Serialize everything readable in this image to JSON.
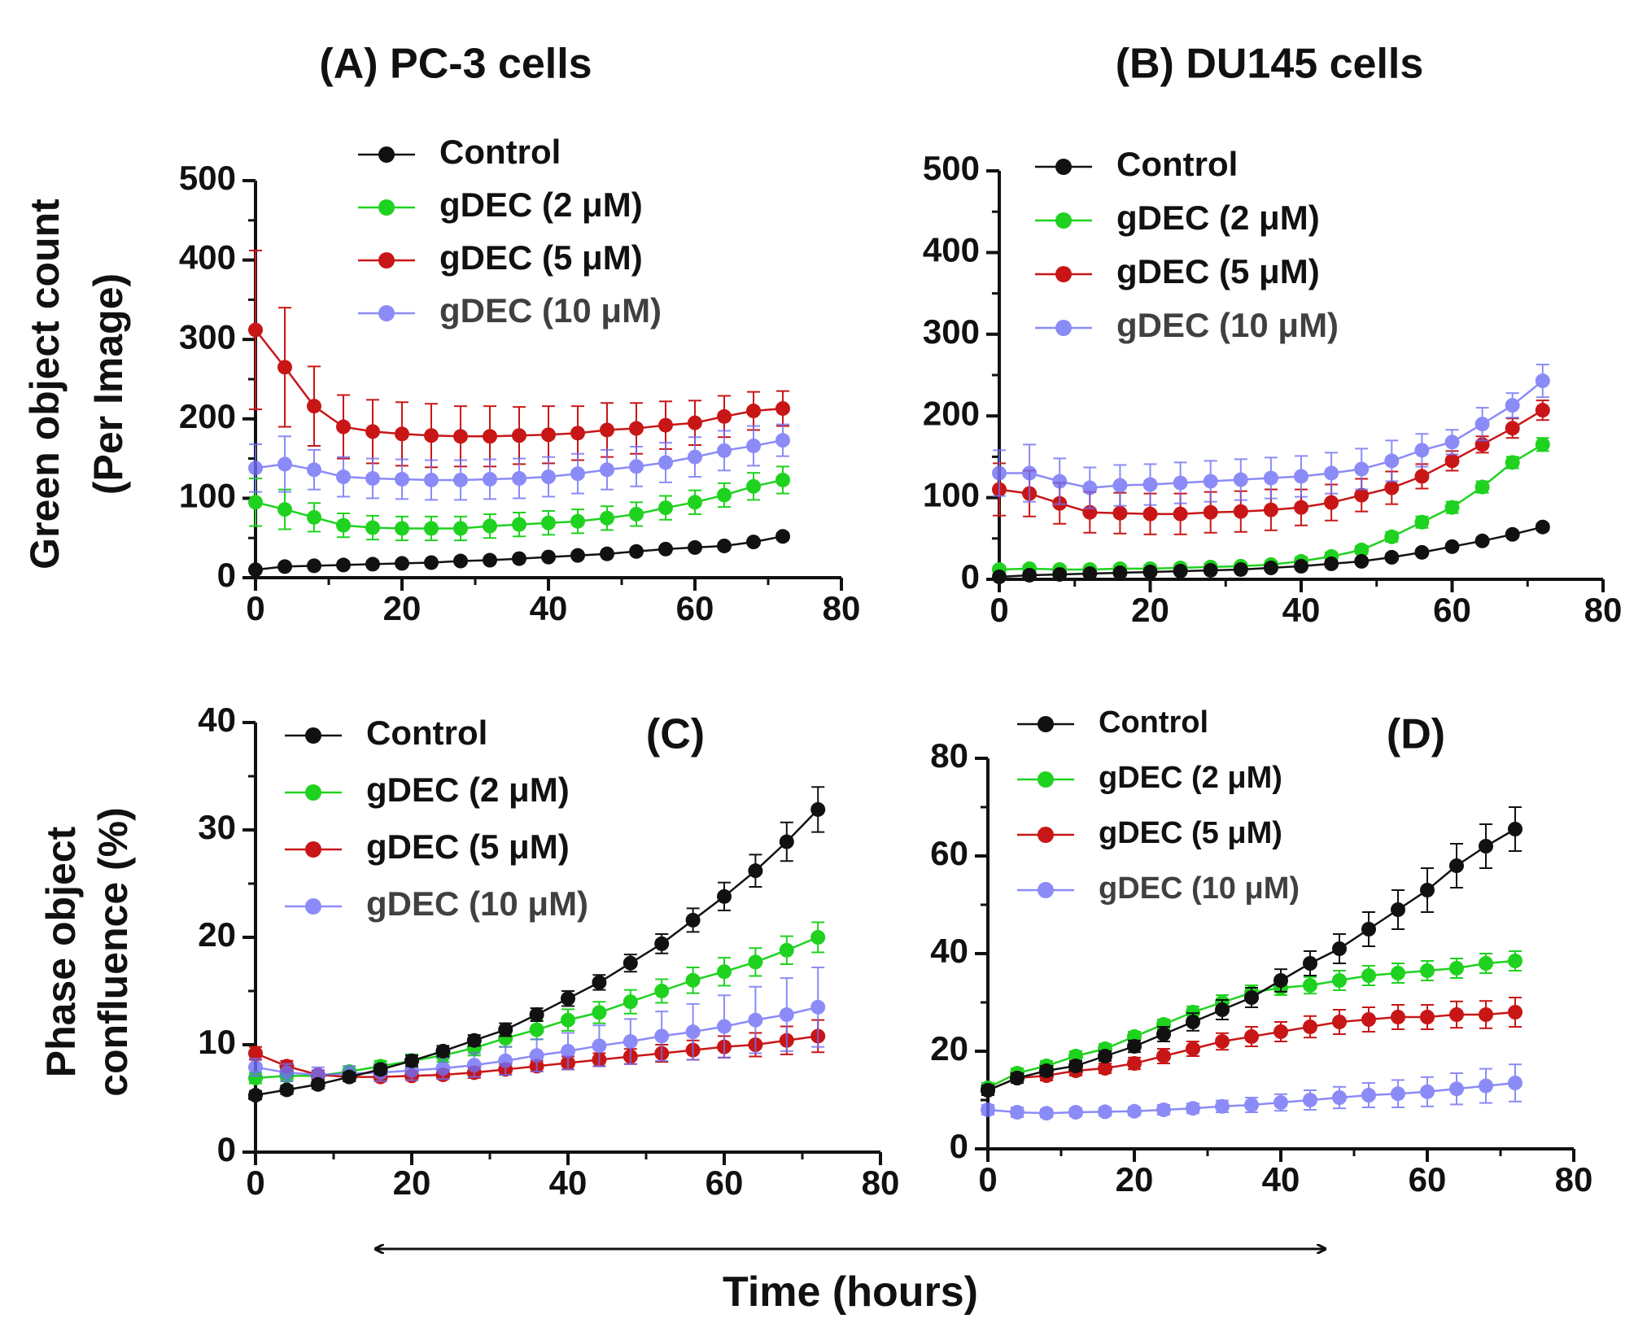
{
  "figure": {
    "bottom_label": "Time (hours)",
    "ylabel_top_line1": "Green object count",
    "ylabel_top_line2": "(Per Image)",
    "ylabel_bottom_line1": "Phase object",
    "ylabel_bottom_line2": "confluence (%)",
    "colors": {
      "control": "#111111",
      "gdec2": "#1fd21f",
      "gdec5": "#c81616",
      "gdec10": "#6f6ff7"
    }
  },
  "chart_data": [
    {
      "id": "A",
      "type": "line",
      "title": "(A) PC-3 cells",
      "xlabel": "Time (hours)",
      "ylabel": "Green object count (Per Image)",
      "xlim": [
        0,
        80
      ],
      "ylim": [
        0,
        500
      ],
      "xticks": [
        0,
        20,
        40,
        60,
        80
      ],
      "yticks": [
        0,
        100,
        200,
        300,
        400,
        500
      ],
      "legend": "top-center",
      "x": [
        0,
        4,
        8,
        12,
        16,
        20,
        24,
        28,
        32,
        36,
        40,
        44,
        48,
        52,
        56,
        60,
        64,
        68,
        72
      ],
      "series": [
        {
          "name": "Control",
          "color": "#111111",
          "opacity": 1,
          "values": [
            10,
            14,
            15,
            16,
            17,
            18,
            19,
            21,
            22,
            24,
            26,
            28,
            30,
            33,
            36,
            38,
            40,
            45,
            52
          ],
          "errors": [
            2,
            2,
            2,
            2,
            2,
            2,
            2,
            2,
            2,
            2,
            2,
            2,
            2,
            2,
            2,
            2,
            2,
            3,
            4
          ]
        },
        {
          "name": "gDEC (2 μM)",
          "color": "#1fd21f",
          "opacity": 1,
          "values": [
            95,
            86,
            76,
            66,
            63,
            62,
            62,
            62,
            65,
            67,
            69,
            71,
            75,
            80,
            88,
            95,
            104,
            115,
            123
          ],
          "errors": [
            30,
            25,
            18,
            15,
            15,
            15,
            15,
            15,
            15,
            15,
            15,
            15,
            15,
            15,
            15,
            15,
            15,
            17,
            17
          ]
        },
        {
          "name": "gDEC (5 μM)",
          "color": "#c81616",
          "opacity": 1,
          "values": [
            312,
            265,
            216,
            190,
            184,
            181,
            179,
            178,
            178,
            179,
            180,
            182,
            186,
            188,
            192,
            195,
            203,
            210,
            213
          ],
          "errors": [
            100,
            75,
            50,
            40,
            40,
            40,
            40,
            38,
            38,
            36,
            36,
            34,
            34,
            32,
            30,
            28,
            26,
            24,
            22
          ]
        },
        {
          "name": "gDEC (10 μM)",
          "color": "#6f6ff7",
          "opacity": 0.8,
          "values": [
            138,
            143,
            136,
            127,
            125,
            124,
            123,
            123,
            124,
            125,
            127,
            131,
            136,
            140,
            145,
            152,
            160,
            166,
            173
          ],
          "errors": [
            30,
            35,
            25,
            25,
            25,
            25,
            25,
            25,
            25,
            25,
            25,
            25,
            25,
            25,
            25,
            25,
            25,
            25,
            20
          ]
        }
      ]
    },
    {
      "id": "B",
      "type": "line",
      "title": "(B) DU145 cells",
      "xlabel": "Time (hours)",
      "ylabel": "Green object count (Per Image)",
      "xlim": [
        0,
        80
      ],
      "ylim": [
        0,
        500
      ],
      "xticks": [
        0,
        20,
        40,
        60,
        80
      ],
      "yticks": [
        0,
        100,
        200,
        300,
        400,
        500
      ],
      "legend": "top-left",
      "x": [
        0,
        4,
        8,
        12,
        16,
        20,
        24,
        28,
        32,
        36,
        40,
        44,
        48,
        52,
        56,
        60,
        64,
        68,
        72
      ],
      "series": [
        {
          "name": "Control",
          "color": "#111111",
          "opacity": 1,
          "values": [
            3,
            5,
            6,
            7,
            8,
            9,
            10,
            11,
            12,
            14,
            16,
            19,
            22,
            27,
            33,
            40,
            47,
            55,
            64
          ],
          "errors": [
            2,
            2,
            2,
            2,
            2,
            2,
            2,
            2,
            2,
            2,
            2,
            2,
            2,
            2,
            3,
            3,
            3,
            3,
            4
          ]
        },
        {
          "name": "gDEC (2 μM)",
          "color": "#1fd21f",
          "opacity": 1,
          "values": [
            12,
            13,
            12,
            12,
            13,
            13,
            14,
            15,
            16,
            18,
            22,
            28,
            36,
            52,
            70,
            88,
            113,
            143,
            165
          ],
          "errors": [
            4,
            4,
            4,
            4,
            4,
            4,
            4,
            4,
            4,
            4,
            5,
            5,
            5,
            6,
            7,
            7,
            7,
            7,
            8
          ]
        },
        {
          "name": "gDEC (5 μM)",
          "color": "#c81616",
          "opacity": 1,
          "values": [
            110,
            105,
            93,
            82,
            81,
            80,
            80,
            82,
            83,
            85,
            88,
            94,
            103,
            112,
            126,
            145,
            165,
            185,
            207
          ],
          "errors": [
            32,
            28,
            25,
            25,
            25,
            25,
            25,
            25,
            25,
            25,
            22,
            22,
            20,
            20,
            15,
            12,
            10,
            12,
            12
          ]
        },
        {
          "name": "gDEC (10 μM)",
          "color": "#6f6ff7",
          "opacity": 0.8,
          "values": [
            130,
            130,
            120,
            112,
            115,
            116,
            118,
            120,
            122,
            124,
            126,
            130,
            135,
            145,
            158,
            168,
            190,
            213,
            243
          ],
          "errors": [
            28,
            35,
            28,
            25,
            25,
            25,
            25,
            25,
            25,
            25,
            25,
            25,
            25,
            25,
            20,
            15,
            20,
            15,
            20
          ]
        }
      ]
    },
    {
      "id": "C",
      "type": "line",
      "title": "(C)",
      "xlabel": "Time (hours)",
      "ylabel": "Phase object confluence (%)",
      "xlim": [
        0,
        80
      ],
      "ylim": [
        0,
        40
      ],
      "xticks": [
        0,
        20,
        40,
        60,
        80
      ],
      "yticks": [
        0,
        10,
        20,
        30,
        40
      ],
      "legend": "top-left",
      "x": [
        0,
        4,
        8,
        12,
        16,
        20,
        24,
        28,
        32,
        36,
        40,
        44,
        48,
        52,
        56,
        60,
        64,
        68,
        72
      ],
      "series": [
        {
          "name": "Control",
          "color": "#111111",
          "opacity": 1,
          "values": [
            5.3,
            5.8,
            6.3,
            7.0,
            7.7,
            8.5,
            9.4,
            10.4,
            11.4,
            12.8,
            14.3,
            15.8,
            17.6,
            19.4,
            21.6,
            23.8,
            26.2,
            28.9,
            31.9
          ],
          "errors": [
            0.4,
            0.4,
            0.4,
            0.4,
            0.4,
            0.5,
            0.5,
            0.5,
            0.6,
            0.6,
            0.7,
            0.7,
            0.8,
            0.9,
            1.1,
            1.3,
            1.5,
            1.8,
            2.1
          ]
        },
        {
          "name": "gDEC (2 μM)",
          "color": "#1fd21f",
          "opacity": 1,
          "values": [
            6.9,
            7.1,
            7.1,
            7.5,
            8.0,
            8.5,
            9.0,
            9.7,
            10.6,
            11.4,
            12.3,
            13.0,
            14.0,
            15.0,
            16.0,
            16.8,
            17.7,
            18.8,
            20.0
          ],
          "errors": [
            0.5,
            0.5,
            0.5,
            0.5,
            0.5,
            0.6,
            0.6,
            0.7,
            0.8,
            0.9,
            1.0,
            1.0,
            1.1,
            1.1,
            1.2,
            1.3,
            1.3,
            1.3,
            1.4
          ]
        },
        {
          "name": "gDEC (5 μM)",
          "color": "#c81616",
          "opacity": 1,
          "values": [
            9.2,
            8.0,
            7.2,
            7.0,
            7.0,
            7.1,
            7.2,
            7.4,
            7.7,
            8.0,
            8.3,
            8.6,
            8.9,
            9.2,
            9.5,
            9.8,
            10.0,
            10.4,
            10.8
          ],
          "errors": [
            0.6,
            0.5,
            0.4,
            0.4,
            0.4,
            0.4,
            0.4,
            0.5,
            0.5,
            0.5,
            0.6,
            0.6,
            0.7,
            0.8,
            0.9,
            1.0,
            1.1,
            1.3,
            1.5
          ]
        },
        {
          "name": "gDEC (10 μM)",
          "color": "#6f6ff7",
          "opacity": 0.8,
          "values": [
            7.9,
            7.4,
            7.2,
            7.3,
            7.4,
            7.6,
            7.8,
            8.1,
            8.5,
            9.0,
            9.4,
            9.9,
            10.3,
            10.8,
            11.2,
            11.7,
            12.3,
            12.8,
            13.5
          ],
          "errors": [
            0.8,
            0.8,
            0.7,
            0.7,
            0.8,
            0.9,
            1.0,
            1.1,
            1.3,
            1.5,
            1.7,
            1.9,
            2.1,
            2.3,
            2.6,
            2.9,
            3.1,
            3.4,
            3.7
          ]
        }
      ]
    },
    {
      "id": "D",
      "type": "line",
      "title": "(D)",
      "xlabel": "Time (hours)",
      "ylabel": "Phase object confluence (%)",
      "xlim": [
        0,
        80
      ],
      "ylim": [
        0,
        80
      ],
      "xticks": [
        0,
        20,
        40,
        60,
        80
      ],
      "yticks": [
        0,
        20,
        40,
        60,
        80
      ],
      "legend": "top-left",
      "x": [
        0,
        4,
        8,
        12,
        16,
        20,
        24,
        28,
        32,
        36,
        40,
        44,
        48,
        52,
        56,
        60,
        64,
        68,
        72
      ],
      "series": [
        {
          "name": "Control",
          "color": "#111111",
          "opacity": 1,
          "values": [
            12,
            14.5,
            16,
            17,
            19,
            21,
            23.5,
            26,
            28.5,
            31,
            34.5,
            38,
            41,
            45,
            49,
            53,
            58,
            62,
            65.5
          ],
          "errors": [
            1,
            1,
            1,
            1,
            1,
            1.2,
            1.5,
            1.8,
            2,
            2,
            2.3,
            2.5,
            3,
            3.5,
            4,
            4.5,
            4.5,
            4.5,
            4.5
          ]
        },
        {
          "name": "gDEC (2 μM)",
          "color": "#1fd21f",
          "opacity": 1,
          "values": [
            12.5,
            15.5,
            17,
            19,
            20.5,
            23,
            25.5,
            28,
            30,
            32,
            33,
            33.5,
            34.5,
            35.5,
            36,
            36.5,
            37,
            38,
            38.5
          ],
          "errors": [
            1,
            1,
            1,
            1,
            1,
            1,
            1,
            1.2,
            1.5,
            1.5,
            1.5,
            1.7,
            2,
            2,
            2,
            2,
            2,
            2,
            2
          ]
        },
        {
          "name": "gDEC (5 μM)",
          "color": "#c81616",
          "opacity": 1,
          "values": [
            12,
            14.5,
            15,
            16,
            16.5,
            17.5,
            19,
            20.5,
            22,
            23,
            24,
            25,
            26,
            26.5,
            27,
            27,
            27.5,
            27.5,
            28
          ],
          "errors": [
            1,
            1,
            1,
            1,
            1,
            1.2,
            1.5,
            1.5,
            1.7,
            2,
            2,
            2.2,
            2.5,
            2.5,
            2.5,
            2.5,
            2.7,
            2.8,
            3
          ]
        },
        {
          "name": "gDEC (10 μM)",
          "color": "#6f6ff7",
          "opacity": 0.8,
          "values": [
            8,
            7.5,
            7.3,
            7.5,
            7.6,
            7.7,
            8,
            8.3,
            8.7,
            9,
            9.5,
            10,
            10.5,
            11,
            11.3,
            11.7,
            12.3,
            12.9,
            13.5
          ],
          "errors": [
            1,
            1,
            0.8,
            0.8,
            0.8,
            0.8,
            1,
            1,
            1.2,
            1.5,
            1.7,
            2,
            2.2,
            2.5,
            2.8,
            3,
            3.2,
            3.5,
            3.8
          ]
        }
      ]
    }
  ]
}
